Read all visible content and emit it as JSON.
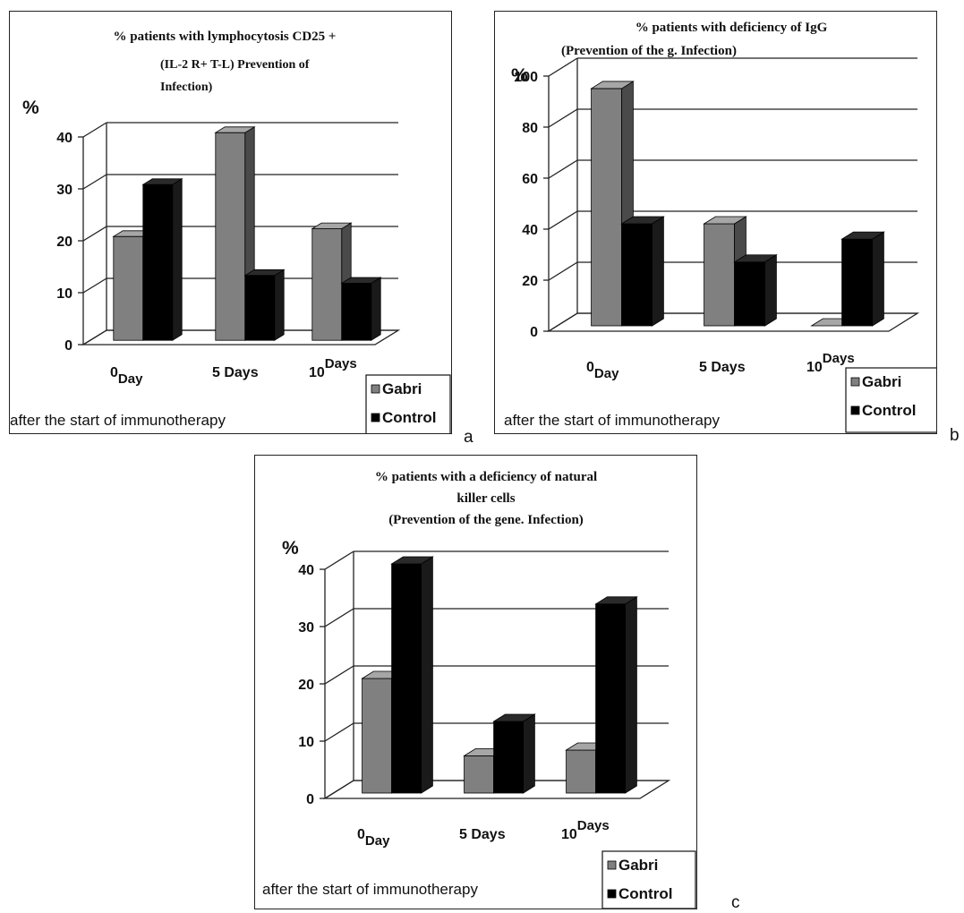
{
  "chart_data": [
    {
      "type": "bar",
      "title_lines": [
        "% patients with lymphocytosis CD25 +",
        "(IL-2 R+ T-L) Prevention of",
        "Infection)"
      ],
      "ylabel": "%",
      "ylim": [
        0,
        40
      ],
      "yticks": [
        "0",
        "10",
        "20",
        "30",
        "40"
      ],
      "categories": [
        {
          "main": "0",
          "sub": "Day",
          "layout": "sub-below"
        },
        {
          "main": "5 Days",
          "sub": "",
          "layout": "plain"
        },
        {
          "main": "10",
          "sub": "Days",
          "layout": "sub-above"
        }
      ],
      "series": [
        {
          "name": "Gabri",
          "values": [
            20,
            40,
            21.5
          ]
        },
        {
          "name": "Control",
          "values": [
            30,
            12.5,
            11
          ]
        }
      ],
      "xlabel": "after the start of immunotherapy",
      "legend": "bottom-right",
      "grid": true,
      "panel_letter": "a"
    },
    {
      "type": "bar",
      "title_lines": [
        "% patients with deficiency of IgG",
        "(Prevention of the g.  Infection)"
      ],
      "ylabel": "%",
      "ylim": [
        0,
        100
      ],
      "yticks": [
        "0",
        "20",
        "40",
        "60",
        "80",
        "100"
      ],
      "categories": [
        {
          "main": "0",
          "sub": "Day",
          "layout": "sub-below"
        },
        {
          "main": "5 Days",
          "sub": "",
          "layout": "plain"
        },
        {
          "main": "10",
          "sub": "Days",
          "layout": "sub-above"
        }
      ],
      "series": [
        {
          "name": "Gabri",
          "values": [
            93,
            40,
            0
          ]
        },
        {
          "name": "Control",
          "values": [
            40,
            25,
            34
          ]
        }
      ],
      "xlabel": "after the start of immunotherapy",
      "legend": "bottom-right",
      "grid": true,
      "panel_letter": "b"
    },
    {
      "type": "bar",
      "title_lines": [
        "% patients with a deficiency of natural",
        "killer cells",
        "(Prevention of the gene. Infection)"
      ],
      "ylabel": "%",
      "ylim": [
        0,
        40
      ],
      "yticks": [
        "0",
        "10",
        "20",
        "30",
        "40"
      ],
      "categories": [
        {
          "main": "0",
          "sub": "Day",
          "layout": "sub-below"
        },
        {
          "main": "5 Days",
          "sub": "",
          "layout": "plain"
        },
        {
          "main": "10",
          "sub": "Days",
          "layout": "sub-above"
        }
      ],
      "series": [
        {
          "name": "Gabri",
          "values": [
            20,
            6.5,
            7.5
          ]
        },
        {
          "name": "Control",
          "values": [
            40,
            12.5,
            33
          ]
        }
      ],
      "xlabel": "after the start of immunotherapy",
      "legend": "bottom-right",
      "grid": true,
      "panel_letter": "c"
    }
  ],
  "colors": {
    "gabri_front": "#808080",
    "gabri_side": "#4a4a4a",
    "gabri_top": "#a6a6a6",
    "control_front": "#000000",
    "control_side": "#1a1a1a",
    "control_top": "#2a2a2a",
    "grid": "#222222"
  }
}
